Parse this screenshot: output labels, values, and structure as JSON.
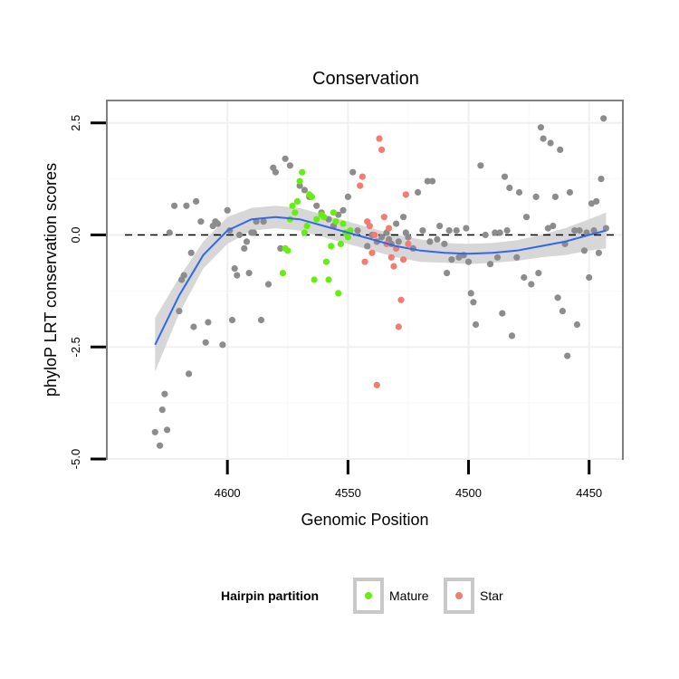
{
  "chart_data": {
    "type": "scatter",
    "title": "Conservation",
    "xlabel": "Genomic Position",
    "ylabel": "phyloP LRT conservation scores",
    "x_reversed": true,
    "xlim": [
      4650,
      4436
    ],
    "ylim": [
      -5.0,
      3.0
    ],
    "x_ticks": [
      4600,
      4550,
      4500,
      4450
    ],
    "y_ticks": [
      -5.0,
      -2.5,
      0.0,
      2.5
    ],
    "y_tick_labels": [
      "-5.0",
      "-2.5",
      "0.0",
      "2.5"
    ],
    "reference_line": {
      "y": 0,
      "style": "dashed",
      "color": "#000000"
    },
    "grid": true,
    "legend": {
      "title": "Hairpin partition",
      "position": "bottom",
      "entries": [
        "Mature",
        "Star"
      ]
    },
    "colors": {
      "other": "#8c8c8c",
      "Mature": "#66ee11",
      "Star": "#f27c6e",
      "trend": "#3366ee",
      "band": "#d3d3d3"
    },
    "series": [
      {
        "name": "",
        "color": "#8c8c8c",
        "points": [
          [
            4630,
            -4.4
          ],
          [
            4628,
            -4.7
          ],
          [
            4627,
            -3.9
          ],
          [
            4625,
            -4.35
          ],
          [
            4626,
            -3.55
          ],
          [
            4624,
            0.05
          ],
          [
            4622,
            0.65
          ],
          [
            4620,
            -1.7
          ],
          [
            4619,
            -1.0
          ],
          [
            4618,
            -0.9
          ],
          [
            4617,
            0.65
          ],
          [
            4616,
            -3.1
          ],
          [
            4615,
            -0.4
          ],
          [
            4614,
            -2.05
          ],
          [
            4613,
            0.75
          ],
          [
            4611,
            0.3
          ],
          [
            4609,
            -2.4
          ],
          [
            4608,
            -1.95
          ],
          [
            4606,
            0.2
          ],
          [
            4605,
            0.3
          ],
          [
            4604,
            0.25
          ],
          [
            4602,
            -2.45
          ],
          [
            4600,
            0.55
          ],
          [
            4599,
            0.1
          ],
          [
            4598,
            -1.9
          ],
          [
            4597,
            -0.75
          ],
          [
            4596,
            -0.9
          ],
          [
            4595,
            0.0
          ],
          [
            4593,
            -0.3
          ],
          [
            4592,
            -0.15
          ],
          [
            4591,
            -0.85
          ],
          [
            4590,
            0.05
          ],
          [
            4589,
            0.05
          ],
          [
            4588,
            0.3
          ],
          [
            4586,
            -1.9
          ],
          [
            4585,
            0.3
          ],
          [
            4583,
            -1.1
          ],
          [
            4581,
            1.5
          ],
          [
            4580,
            1.4
          ],
          [
            4578,
            -0.3
          ],
          [
            4576,
            1.7
          ],
          [
            4574,
            1.55
          ],
          [
            4570,
            1.1
          ],
          [
            4568,
            1.0
          ],
          [
            4566,
            0.85
          ],
          [
            4563,
            0.65
          ],
          [
            4561,
            0.5
          ],
          [
            4558,
            0.35
          ],
          [
            4556,
            0.2
          ],
          [
            4554,
            0.45
          ],
          [
            4552,
            0.55
          ],
          [
            4550,
            0.85
          ],
          [
            4548,
            1.4
          ],
          [
            4546,
            0.1
          ],
          [
            4542,
            -0.25
          ],
          [
            4540,
            0.0
          ],
          [
            4538,
            -0.15
          ],
          [
            4536,
            -0.05
          ],
          [
            4534,
            0.05
          ],
          [
            4533,
            -0.1
          ],
          [
            4532,
            -0.2
          ],
          [
            4530,
            0.25
          ],
          [
            4529,
            -0.15
          ],
          [
            4527,
            0.4
          ],
          [
            4526,
            0.05
          ],
          [
            4525,
            -0.05
          ],
          [
            4523,
            -0.3
          ],
          [
            4521,
            0.95
          ],
          [
            4519,
            0.1
          ],
          [
            4517,
            1.2
          ],
          [
            4516,
            -0.15
          ],
          [
            4515,
            1.2
          ],
          [
            4513,
            -0.1
          ],
          [
            4512,
            0.2
          ],
          [
            4510,
            -0.2
          ],
          [
            4509,
            -0.85
          ],
          [
            4508,
            0.1
          ],
          [
            4507,
            -0.55
          ],
          [
            4505,
            0.1
          ],
          [
            4504,
            -0.5
          ],
          [
            4502,
            -0.45
          ],
          [
            4501,
            0.15
          ],
          [
            4500,
            -0.6
          ],
          [
            4499,
            -1.3
          ],
          [
            4498,
            -1.5
          ],
          [
            4497,
            -2.0
          ],
          [
            4495,
            1.55
          ],
          [
            4493,
            0.0
          ],
          [
            4491,
            -0.65
          ],
          [
            4489,
            0.05
          ],
          [
            4488,
            -0.5
          ],
          [
            4487,
            0.05
          ],
          [
            4486,
            -1.75
          ],
          [
            4485,
            1.3
          ],
          [
            4484,
            0.1
          ],
          [
            4483,
            1.05
          ],
          [
            4482,
            -2.25
          ],
          [
            4480,
            -0.5
          ],
          [
            4479,
            0.95
          ],
          [
            4477,
            -0.95
          ],
          [
            4476,
            0.4
          ],
          [
            4474,
            -1.1
          ],
          [
            4472,
            0.85
          ],
          [
            4471,
            -0.85
          ],
          [
            4470,
            2.4
          ],
          [
            4469,
            2.15
          ],
          [
            4467,
            0.15
          ],
          [
            4466,
            2.05
          ],
          [
            4465,
            0.2
          ],
          [
            4464,
            0.85
          ],
          [
            4463,
            -1.4
          ],
          [
            4462,
            1.9
          ],
          [
            4461,
            -1.7
          ],
          [
            4460,
            -0.2
          ],
          [
            4459,
            -2.7
          ],
          [
            4458,
            0.95
          ],
          [
            4456,
            0.1
          ],
          [
            4455,
            -2.0
          ],
          [
            4454,
            0.1
          ],
          [
            4452,
            -0.35
          ],
          [
            4451,
            0.05
          ],
          [
            4450,
            -0.95
          ],
          [
            4449,
            0.7
          ],
          [
            4448,
            0.1
          ],
          [
            4447,
            0.75
          ],
          [
            4446,
            -0.4
          ],
          [
            4445,
            1.25
          ],
          [
            4444,
            2.6
          ],
          [
            4443,
            0.15
          ]
        ]
      },
      {
        "name": "Mature",
        "color": "#66ee11",
        "points": [
          [
            4577,
            -0.85
          ],
          [
            4576,
            -0.3
          ],
          [
            4575,
            -0.35
          ],
          [
            4574,
            0.35
          ],
          [
            4573,
            0.65
          ],
          [
            4572,
            0.5
          ],
          [
            4571,
            0.75
          ],
          [
            4570,
            1.2
          ],
          [
            4569,
            1.4
          ],
          [
            4568,
            0.05
          ],
          [
            4567,
            0.2
          ],
          [
            4566,
            0.9
          ],
          [
            4565,
            0.85
          ],
          [
            4564,
            -1.0
          ],
          [
            4563,
            0.35
          ],
          [
            4561,
            0.45
          ],
          [
            4560,
            0.4
          ],
          [
            4559,
            -0.6
          ],
          [
            4558,
            -1.0
          ],
          [
            4557,
            -0.25
          ],
          [
            4556,
            0.5
          ],
          [
            4555,
            0.3
          ],
          [
            4554,
            -1.3
          ],
          [
            4553,
            -0.2
          ],
          [
            4552,
            0.25
          ],
          [
            4551,
            0.05
          ],
          [
            4550,
            -0.05
          ],
          [
            4549,
            0.1
          ]
        ]
      },
      {
        "name": "Star",
        "color": "#f27c6e",
        "points": [
          [
            4545,
            1.1
          ],
          [
            4544,
            1.3
          ],
          [
            4543,
            -0.6
          ],
          [
            4542,
            0.3
          ],
          [
            4541,
            0.2
          ],
          [
            4540,
            -0.4
          ],
          [
            4539,
            0.0
          ],
          [
            4538,
            -3.35
          ],
          [
            4537,
            2.15
          ],
          [
            4536,
            1.9
          ],
          [
            4535,
            0.4
          ],
          [
            4534,
            -0.2
          ],
          [
            4533,
            0.15
          ],
          [
            4532,
            -0.5
          ],
          [
            4531,
            -0.7
          ],
          [
            4530,
            -0.3
          ],
          [
            4529,
            -2.05
          ],
          [
            4528,
            -1.45
          ],
          [
            4527,
            -0.55
          ],
          [
            4526,
            0.9
          ],
          [
            4525,
            -0.2
          ]
        ]
      }
    ],
    "trend": {
      "color": "#3366ee",
      "points": [
        [
          4630,
          -2.45
        ],
        [
          4620,
          -1.35
        ],
        [
          4610,
          -0.45
        ],
        [
          4600,
          0.1
        ],
        [
          4590,
          0.35
        ],
        [
          4580,
          0.4
        ],
        [
          4570,
          0.35
        ],
        [
          4560,
          0.2
        ],
        [
          4550,
          0.05
        ],
        [
          4540,
          -0.1
        ],
        [
          4530,
          -0.25
        ],
        [
          4520,
          -0.35
        ],
        [
          4510,
          -0.4
        ],
        [
          4500,
          -0.42
        ],
        [
          4490,
          -0.4
        ],
        [
          4480,
          -0.35
        ],
        [
          4470,
          -0.25
        ],
        [
          4460,
          -0.15
        ],
        [
          4450,
          0.0
        ],
        [
          4443,
          0.1
        ]
      ],
      "lower": [
        [
          4630,
          -3.05
        ],
        [
          4620,
          -1.75
        ],
        [
          4610,
          -0.75
        ],
        [
          4600,
          -0.2
        ],
        [
          4590,
          0.1
        ],
        [
          4580,
          0.15
        ],
        [
          4570,
          0.1
        ],
        [
          4560,
          -0.05
        ],
        [
          4550,
          -0.2
        ],
        [
          4540,
          -0.35
        ],
        [
          4530,
          -0.5
        ],
        [
          4520,
          -0.6
        ],
        [
          4510,
          -0.62
        ],
        [
          4500,
          -0.65
        ],
        [
          4490,
          -0.62
        ],
        [
          4480,
          -0.58
        ],
        [
          4470,
          -0.5
        ],
        [
          4460,
          -0.45
        ],
        [
          4450,
          -0.35
        ],
        [
          4443,
          -0.3
        ]
      ],
      "upper": [
        [
          4630,
          -1.85
        ],
        [
          4620,
          -0.95
        ],
        [
          4610,
          -0.15
        ],
        [
          4600,
          0.4
        ],
        [
          4590,
          0.6
        ],
        [
          4580,
          0.65
        ],
        [
          4570,
          0.6
        ],
        [
          4560,
          0.45
        ],
        [
          4550,
          0.3
        ],
        [
          4540,
          0.15
        ],
        [
          4530,
          0.0
        ],
        [
          4520,
          -0.1
        ],
        [
          4510,
          -0.18
        ],
        [
          4500,
          -0.2
        ],
        [
          4490,
          -0.18
        ],
        [
          4480,
          -0.12
        ],
        [
          4470,
          0.0
        ],
        [
          4460,
          0.15
        ],
        [
          4450,
          0.35
        ],
        [
          4443,
          0.5
        ]
      ]
    }
  }
}
